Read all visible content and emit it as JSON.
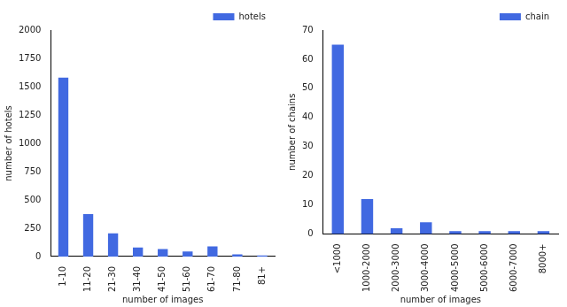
{
  "chart_data": [
    {
      "type": "bar",
      "categories": [
        "1-10",
        "11-20",
        "21-30",
        "31-40",
        "41-50",
        "51-60",
        "61-70",
        "71-80",
        "81+"
      ],
      "series": [
        {
          "name": "hotels",
          "color": "#4169e1",
          "values": [
            1580,
            375,
            205,
            80,
            65,
            45,
            90,
            20,
            10
          ]
        }
      ],
      "x_label": "number of images",
      "y_label": "number of hotels",
      "ylim": [
        0,
        2000
      ],
      "yticks": [
        0,
        250,
        500,
        750,
        1000,
        1250,
        1500,
        1750,
        2000
      ],
      "grid": false,
      "legend": "upper right"
    },
    {
      "type": "bar",
      "categories": [
        "<1000",
        "1000-2000",
        "2000-3000",
        "3000-4000",
        "4000-5000",
        "5000-6000",
        "6000-7000",
        "8000+"
      ],
      "series": [
        {
          "name": "chain",
          "color": "#4169e1",
          "values": [
            65,
            12,
            2,
            4,
            1,
            1,
            1,
            1
          ]
        }
      ],
      "x_label": "number of images",
      "y_label": "number of chains",
      "ylim": [
        0,
        70
      ],
      "yticks": [
        0,
        10,
        20,
        30,
        40,
        50,
        60,
        70
      ],
      "grid": false,
      "legend": "upper right"
    }
  ]
}
